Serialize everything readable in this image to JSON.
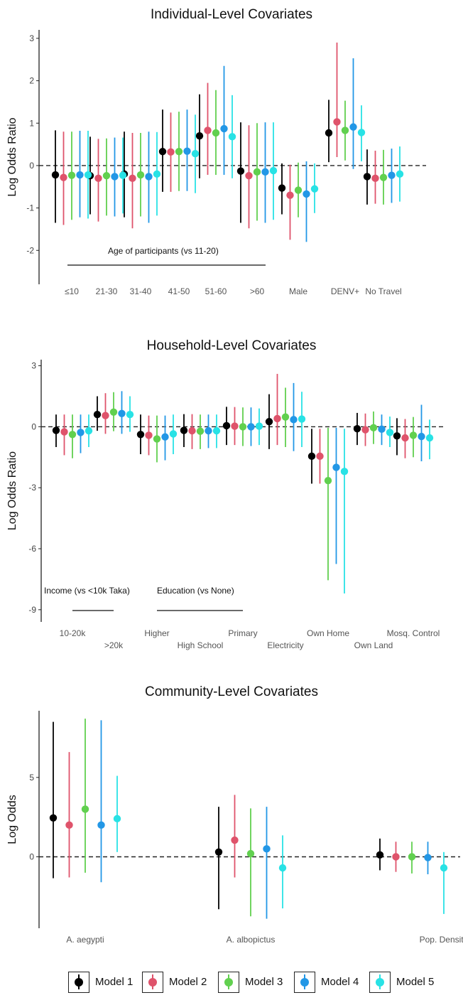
{
  "series_colors": {
    "Model 1": "#000000",
    "Model 2": "#DF536B",
    "Model 3": "#61D04F",
    "Model 4": "#2297E6",
    "Model 5": "#28E2E5"
  },
  "legend": {
    "items": [
      "Model 1",
      "Model 2",
      "Model 3",
      "Model 4",
      "Model 5"
    ]
  },
  "chart_data": [
    {
      "type": "scatter",
      "subtype": "point-range",
      "title": "Individual-Level Covariates",
      "ylabel": "Log Odds Ratio",
      "xlabel": "",
      "ylim": [
        -2.8,
        3.2
      ],
      "yticks": [
        -2,
        -1,
        0,
        1,
        2,
        3
      ],
      "reference_line": 0,
      "categories": [
        "≤10",
        "21-30",
        "31-40",
        "41-50",
        "51-60",
        ">60",
        "Male",
        "DENV+",
        "No Travel"
      ],
      "annotations": [
        {
          "text": "Age of participants (vs 11-20)",
          "categories": [
            "≤10",
            ">60"
          ]
        }
      ],
      "series": [
        {
          "name": "Model 1",
          "values": [
            -0.22,
            -0.24,
            -0.2,
            0.33,
            0.7,
            -0.13,
            -0.53,
            0.77,
            -0.26
          ],
          "lower": [
            -1.35,
            -1.15,
            -1.22,
            -0.62,
            -0.3,
            -1.35,
            -1.15,
            0.08,
            -0.92
          ],
          "upper": [
            0.83,
            0.68,
            0.8,
            1.32,
            1.68,
            1.02,
            0.05,
            1.55,
            0.38
          ]
        },
        {
          "name": "Model 2",
          "values": [
            -0.28,
            -0.3,
            -0.3,
            0.32,
            0.83,
            -0.24,
            -0.7,
            1.03,
            -0.3
          ],
          "lower": [
            -1.4,
            -1.32,
            -1.48,
            -0.62,
            -0.22,
            -1.48,
            -1.75,
            0.2,
            -0.9
          ],
          "upper": [
            0.8,
            0.63,
            0.77,
            1.25,
            1.95,
            0.95,
            0.02,
            2.9,
            0.35
          ]
        },
        {
          "name": "Model 3",
          "values": [
            -0.23,
            -0.24,
            -0.22,
            0.33,
            0.77,
            -0.15,
            -0.58,
            0.83,
            -0.28
          ],
          "lower": [
            -1.28,
            -1.18,
            -1.2,
            -0.6,
            -0.22,
            -1.3,
            -1.22,
            0.12,
            -0.92
          ],
          "upper": [
            0.8,
            0.64,
            0.77,
            1.27,
            1.78,
            1.0,
            0.07,
            1.53,
            0.37
          ]
        },
        {
          "name": "Model 4",
          "values": [
            -0.22,
            -0.26,
            -0.26,
            0.34,
            0.87,
            -0.15,
            -0.67,
            0.91,
            -0.23
          ],
          "lower": [
            -1.22,
            -1.2,
            -1.35,
            -0.6,
            -0.22,
            -1.35,
            -1.8,
            -0.08,
            -0.88
          ],
          "upper": [
            0.82,
            0.66,
            0.8,
            1.32,
            2.35,
            1.02,
            0.1,
            2.53,
            0.4
          ]
        },
        {
          "name": "Model 5",
          "values": [
            -0.22,
            -0.23,
            -0.2,
            0.28,
            0.68,
            -0.12,
            -0.55,
            0.78,
            -0.2
          ],
          "lower": [
            -1.25,
            -1.13,
            -1.18,
            -0.65,
            -0.3,
            -1.28,
            -1.12,
            0.1,
            -0.85
          ],
          "upper": [
            0.82,
            0.66,
            0.79,
            1.2,
            1.66,
            1.02,
            0.05,
            1.42,
            0.45
          ]
        }
      ]
    },
    {
      "type": "scatter",
      "subtype": "point-range",
      "title": "Household-Level Covariates",
      "ylabel": "Log Odds Ratio",
      "xlabel": "",
      "ylim": [
        -9.6,
        3.3
      ],
      "yticks": [
        -9,
        -6,
        -3,
        0,
        3
      ],
      "reference_line": 0,
      "categories": [
        "10-20k",
        ">20k",
        "Higher",
        "High School",
        "Primary",
        "Electricity",
        "Own Home",
        "Own Land",
        "Mosq. Control"
      ],
      "annotations": [
        {
          "text": "Income (vs <10k Taka)",
          "categories": [
            "10-20k",
            ">20k"
          ]
        },
        {
          "text": "Education (vs None)",
          "categories": [
            "Higher",
            "Primary"
          ]
        }
      ],
      "series": [
        {
          "name": "Model 1",
          "values": [
            -0.18,
            0.6,
            -0.38,
            -0.18,
            0.05,
            0.25,
            -1.45,
            -0.1,
            -0.45
          ],
          "lower": [
            -1.0,
            -0.2,
            -1.35,
            -1.0,
            -0.9,
            -1.1,
            -2.8,
            -0.9,
            -1.4
          ],
          "upper": [
            0.6,
            1.5,
            0.6,
            0.62,
            0.98,
            1.6,
            -0.1,
            0.68,
            0.42
          ]
        },
        {
          "name": "Model 2",
          "values": [
            -0.25,
            0.55,
            -0.42,
            -0.2,
            0.03,
            0.4,
            -1.45,
            -0.15,
            -0.55
          ],
          "lower": [
            -1.4,
            -0.35,
            -1.4,
            -1.1,
            -0.9,
            -0.9,
            -2.8,
            -0.95,
            -1.55
          ],
          "upper": [
            0.6,
            1.65,
            0.55,
            0.62,
            0.97,
            2.6,
            -0.1,
            0.65,
            0.38
          ]
        },
        {
          "name": "Model 3",
          "values": [
            -0.38,
            0.72,
            -0.6,
            -0.22,
            0.0,
            0.48,
            -2.65,
            -0.05,
            -0.42
          ],
          "lower": [
            -1.55,
            -0.22,
            -1.75,
            -1.1,
            -0.95,
            -1.0,
            -7.55,
            -0.85,
            -1.5
          ],
          "upper": [
            0.6,
            1.7,
            0.55,
            0.6,
            0.95,
            1.92,
            -0.05,
            0.75,
            0.48
          ]
        },
        {
          "name": "Model 4",
          "values": [
            -0.28,
            0.65,
            -0.5,
            -0.2,
            0.0,
            0.35,
            -2.0,
            -0.12,
            -0.48
          ],
          "lower": [
            -1.3,
            -0.35,
            -1.65,
            -1.05,
            -0.95,
            -1.2,
            -6.75,
            -0.9,
            -1.7
          ],
          "upper": [
            0.6,
            1.75,
            0.55,
            0.6,
            0.95,
            2.15,
            -0.05,
            0.6,
            1.08
          ]
        },
        {
          "name": "Model 5",
          "values": [
            -0.2,
            0.6,
            -0.35,
            -0.2,
            0.03,
            0.38,
            -2.2,
            -0.28,
            -0.55
          ],
          "lower": [
            -1.0,
            -0.25,
            -1.35,
            -1.05,
            -0.9,
            -1.0,
            -8.2,
            -1.0,
            -1.6
          ],
          "upper": [
            0.6,
            1.5,
            0.6,
            0.6,
            0.9,
            1.72,
            -0.1,
            0.5,
            0.35
          ]
        }
      ]
    },
    {
      "type": "scatter",
      "subtype": "point-range",
      "title": "Community-Level Covariates",
      "ylabel": "Log Odds",
      "xlabel": "",
      "ylim": [
        -4.5,
        9.2
      ],
      "yticks": [
        0,
        5
      ],
      "reference_line": 0,
      "categories": [
        "A. aegypti",
        "A. albopictus",
        "Pop. Density (log scale"
      ],
      "annotations": [],
      "series": [
        {
          "name": "Model 1",
          "values": [
            2.45,
            0.3,
            0.12
          ],
          "lower": [
            -1.35,
            -3.3,
            -0.85
          ],
          "upper": [
            8.5,
            3.15,
            1.15
          ]
        },
        {
          "name": "Model 2",
          "values": [
            2.0,
            1.05,
            0.0
          ],
          "lower": [
            -1.3,
            -1.3,
            -0.95
          ],
          "upper": [
            6.6,
            3.9,
            0.95
          ]
        },
        {
          "name": "Model 3",
          "values": [
            3.0,
            0.2,
            0.0
          ],
          "lower": [
            -1.0,
            -3.75,
            -1.05
          ],
          "upper": [
            8.7,
            3.05,
            0.95
          ]
        },
        {
          "name": "Model 4",
          "values": [
            2.0,
            0.5,
            -0.05
          ],
          "lower": [
            -1.6,
            -3.9,
            -1.1
          ],
          "upper": [
            8.6,
            3.15,
            0.95
          ]
        },
        {
          "name": "Model 5",
          "values": [
            2.4,
            -0.7,
            -0.7
          ],
          "lower": [
            0.3,
            -3.25,
            -3.6
          ],
          "upper": [
            5.1,
            1.35,
            0.3
          ]
        }
      ]
    }
  ]
}
